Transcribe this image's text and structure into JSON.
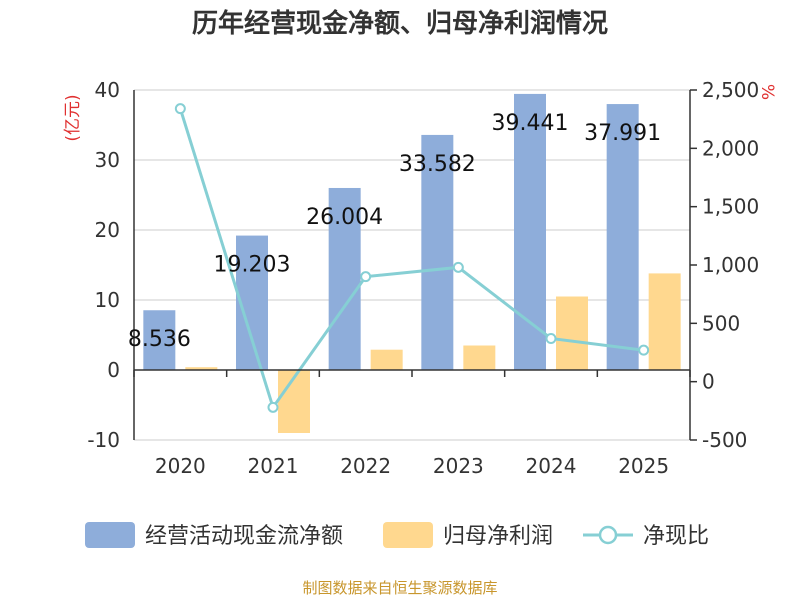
{
  "chart_data": {
    "type": "bar",
    "title": "历年经营现金净额、归母净利润情况",
    "categories": [
      "2020",
      "2021",
      "2022",
      "2023",
      "2024",
      "2025"
    ],
    "left_axis": {
      "unit_label": "(亿元)",
      "ylim": [
        -10,
        40
      ],
      "ticks": [
        40,
        30,
        20,
        10,
        0,
        -10
      ]
    },
    "right_axis": {
      "unit_label": "%",
      "ylim": [
        -500,
        2500
      ],
      "ticks": [
        2500,
        2000,
        1500,
        1000,
        500,
        0,
        -500
      ],
      "tick_labels": [
        "2,500",
        "2,000",
        "1,500",
        "1,000",
        "500",
        "0",
        "-500"
      ]
    },
    "series": [
      {
        "name": "经营活动现金流净额",
        "type": "bar",
        "axis": "left",
        "color": "#8eadda",
        "values": [
          8.536,
          19.203,
          26.004,
          33.582,
          39.441,
          37.991
        ],
        "labels": [
          "8.536",
          "19.203",
          "26.004",
          "33.582",
          "39.441",
          "37.991"
        ]
      },
      {
        "name": "归母净利润",
        "type": "bar",
        "axis": "left",
        "color": "#ffd88f",
        "values": [
          0.4,
          -9.0,
          2.9,
          3.5,
          10.5,
          13.8
        ]
      },
      {
        "name": "净现比",
        "type": "line",
        "axis": "right",
        "color": "#86cfd4",
        "values": [
          2340,
          -220,
          900,
          980,
          370,
          270
        ]
      }
    ],
    "source": "制图数据来自恒生聚源数据库"
  }
}
